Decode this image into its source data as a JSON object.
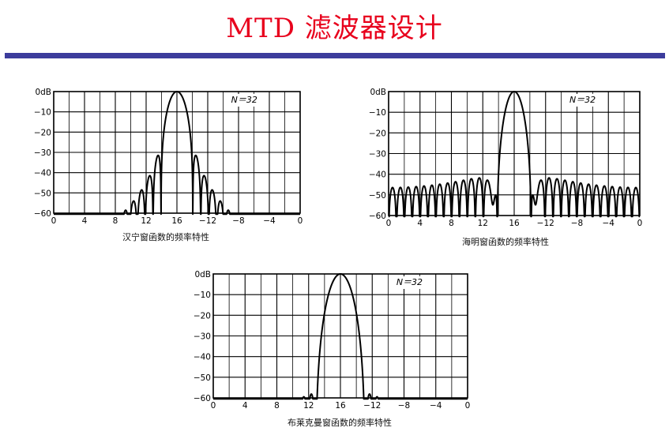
{
  "slide": {
    "title": "MTD 滤波器设计",
    "title_color": "#e8001c",
    "rule_color": "#3c3c9c"
  },
  "chart_data": [
    {
      "type": "line",
      "window": "hann",
      "caption": "汉宁窗函数的频率特性",
      "n_label": "N＝32",
      "x_ticks": [
        "0",
        "4",
        "8",
        "12",
        "16",
        "−12",
        "−8",
        "−4",
        "0"
      ],
      "x_range": [
        0,
        32
      ],
      "y_ticks": [
        "0dB",
        "−10",
        "−20",
        "−30",
        "−40",
        "−50",
        "−60"
      ],
      "y_range": [
        -60,
        0
      ],
      "lobe_notes": "mainlobe centred at 16, sidelobes about −32, −41, −48, −55, −59 dB, floor below −60 dB"
    },
    {
      "type": "line",
      "window": "hamming",
      "caption": "海明窗函数的频率特性",
      "n_label": "N＝32",
      "x_ticks": [
        "0",
        "4",
        "8",
        "12",
        "16",
        "−12",
        "−8",
        "−4",
        "0"
      ],
      "x_range": [
        0,
        32
      ],
      "y_ticks": [
        "0dB",
        "−10",
        "−20",
        "−30",
        "−40",
        "−50",
        "−60"
      ],
      "y_range": [
        -60,
        0
      ],
      "lobe_notes": "mainlobe centred at 16, flat sidelobe train near −43 to −47 dB across the band"
    },
    {
      "type": "line",
      "window": "blackman",
      "caption": "布莱克曼窗函数的频率特性",
      "n_label": "N＝32",
      "x_ticks": [
        "0",
        "4",
        "8",
        "12",
        "16",
        "−12",
        "−8",
        "−4",
        "0"
      ],
      "x_range": [
        0,
        32
      ],
      "y_ticks": [
        "0dB",
        "−10",
        "−20",
        "−30",
        "−40",
        "−50",
        "−60"
      ],
      "y_range": [
        -60,
        0
      ],
      "lobe_notes": "wide mainlobe centred at 16, sidelobes near −58 dB"
    }
  ]
}
